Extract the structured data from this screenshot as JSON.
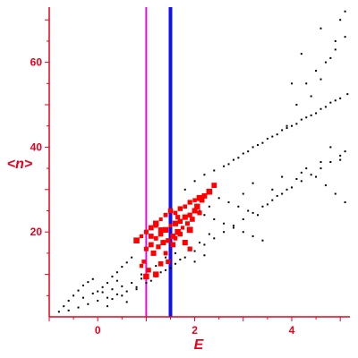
{
  "colors": {
    "axis": "#e8001c",
    "points": "#000000",
    "highlight": "#ff0000",
    "line_a": "#e010e0",
    "line_b": "#1010f0",
    "background": "#ffffff"
  },
  "chart_data": {
    "type": "scatter",
    "title": "",
    "xlabel": "E",
    "ylabel": "<n>",
    "xlim": [
      -1,
      5.2
    ],
    "ylim": [
      0,
      73
    ],
    "xticks": [
      0,
      2,
      4
    ],
    "yticks": [
      20,
      40,
      60
    ],
    "xtick_labels": [
      "0",
      "2",
      "4"
    ],
    "ytick_labels": [
      "20",
      "40",
      "60"
    ],
    "vertical_lines": [
      {
        "x": 1.0,
        "color": "#e010e0"
      },
      {
        "x": 1.5,
        "color": "#1010f0"
      }
    ],
    "grid": false,
    "series": [
      {
        "color": "#000000",
        "marker_size": "small",
        "points": [
          [
            -0.8,
            1.2
          ],
          [
            -0.7,
            2.5
          ],
          [
            -0.6,
            3.8
          ],
          [
            -0.5,
            5.0
          ],
          [
            -0.4,
            6.2
          ],
          [
            -0.3,
            7.4
          ],
          [
            -0.2,
            8.2
          ],
          [
            -0.1,
            8.9
          ],
          [
            0.0,
            6.0
          ],
          [
            0.1,
            7.0
          ],
          [
            0.2,
            8.0
          ],
          [
            0.3,
            9.5
          ],
          [
            0.4,
            10.5
          ],
          [
            0.5,
            11.8
          ],
          [
            0.6,
            12.8
          ],
          [
            0.7,
            14.0
          ],
          [
            -0.6,
            1.5
          ],
          [
            -0.4,
            2.2
          ],
          [
            -0.2,
            3.0
          ],
          [
            0.0,
            3.8
          ],
          [
            0.2,
            4.5
          ],
          [
            0.4,
            5.3
          ],
          [
            0.6,
            6.0
          ],
          [
            0.8,
            7.0
          ],
          [
            -0.3,
            4.5
          ],
          [
            0.1,
            5.8
          ],
          [
            0.3,
            6.5
          ],
          [
            0.5,
            7.2
          ],
          [
            0.7,
            8.0
          ],
          [
            0.9,
            9.0
          ],
          [
            0.2,
            2.5
          ],
          [
            0.6,
            3.5
          ],
          [
            1.0,
            8.0
          ],
          [
            1.2,
            9.5
          ],
          [
            1.4,
            11.0
          ],
          [
            1.6,
            12.5
          ],
          [
            1.8,
            14.0
          ],
          [
            2.0,
            15.5
          ],
          [
            2.2,
            17.0
          ],
          [
            2.4,
            18.5
          ],
          [
            2.6,
            20.0
          ],
          [
            2.8,
            21.5
          ],
          [
            3.0,
            23.0
          ],
          [
            3.2,
            24.5
          ],
          [
            3.4,
            26.0
          ],
          [
            3.6,
            27.5
          ],
          [
            3.8,
            29.0
          ],
          [
            4.0,
            30.5
          ],
          [
            4.2,
            32.0
          ],
          [
            4.4,
            33.5
          ],
          [
            4.6,
            35.0
          ],
          [
            4.8,
            36.5
          ],
          [
            5.0,
            38.0
          ],
          [
            5.1,
            39.0
          ],
          [
            1.8,
            30.0
          ],
          [
            2.0,
            32.0
          ],
          [
            2.2,
            33.5
          ],
          [
            2.4,
            34.5
          ],
          [
            2.6,
            35.5
          ],
          [
            2.8,
            37.0
          ],
          [
            3.0,
            38.5
          ],
          [
            3.2,
            40.0
          ],
          [
            3.4,
            41.0
          ],
          [
            3.6,
            42.5
          ],
          [
            3.8,
            44.0
          ],
          [
            4.0,
            45.0
          ],
          [
            4.2,
            46.5
          ],
          [
            4.4,
            47.5
          ],
          [
            4.6,
            49.0
          ],
          [
            4.8,
            50.5
          ],
          [
            5.0,
            51.5
          ],
          [
            5.15,
            52.5
          ],
          [
            3.9,
            44.5
          ],
          [
            4.1,
            45.5
          ],
          [
            4.3,
            47.0
          ],
          [
            4.5,
            48.0
          ],
          [
            4.7,
            49.5
          ],
          [
            4.9,
            51.0
          ],
          [
            3.3,
            40.5
          ],
          [
            3.5,
            42.0
          ],
          [
            3.7,
            43.0
          ],
          [
            2.7,
            36.0
          ],
          [
            2.9,
            37.5
          ],
          [
            3.1,
            39.0
          ],
          [
            2.2,
            24.0
          ],
          [
            2.4,
            23.0
          ],
          [
            2.6,
            22.0
          ],
          [
            2.8,
            21.0
          ],
          [
            3.0,
            20.0
          ],
          [
            3.2,
            19.0
          ],
          [
            3.4,
            18.0
          ],
          [
            2.5,
            28.0
          ],
          [
            2.7,
            27.0
          ],
          [
            2.9,
            26.0
          ],
          [
            3.1,
            25.0
          ],
          [
            3.3,
            24.0
          ],
          [
            3.5,
            26.5
          ],
          [
            3.7,
            28.5
          ],
          [
            3.9,
            30.0
          ],
          [
            4.1,
            32.5
          ],
          [
            4.3,
            35.0
          ],
          [
            4.5,
            33.0
          ],
          [
            4.7,
            31.0
          ],
          [
            4.9,
            29.0
          ],
          [
            5.1,
            27.0
          ],
          [
            3.9,
            45.0
          ],
          [
            4.1,
            50.0
          ],
          [
            4.3,
            55.0
          ],
          [
            4.5,
            58.0
          ],
          [
            4.7,
            60.0
          ],
          [
            4.9,
            63.0
          ],
          [
            5.1,
            66.0
          ],
          [
            4.4,
            52.0
          ],
          [
            4.6,
            56.0
          ],
          [
            4.8,
            61.0
          ],
          [
            5.0,
            70.0
          ],
          [
            5.1,
            72.0
          ],
          [
            4.6,
            68.0
          ],
          [
            4.9,
            65.0
          ],
          [
            4.2,
            62.0
          ],
          [
            4.0,
            55.0
          ],
          [
            4.8,
            40.0
          ],
          [
            5.0,
            37.0
          ],
          [
            4.6,
            36.5
          ],
          [
            4.2,
            34.0
          ],
          [
            3.8,
            33.0
          ],
          [
            3.2,
            31.5
          ],
          [
            3.6,
            30.0
          ],
          [
            2.3,
            26.0
          ],
          [
            2.1,
            25.0
          ],
          [
            3.0,
            29.0
          ],
          [
            2.0,
            13.0
          ],
          [
            2.2,
            14.5
          ],
          [
            1.4,
            14.0
          ],
          [
            1.6,
            15.0
          ],
          [
            1.2,
            12.0
          ],
          [
            0.9,
            10.0
          ],
          [
            0.4,
            8.5
          ],
          [
            -0.1,
            5.5
          ],
          [
            0.3,
            4.2
          ],
          [
            0.5,
            5.0
          ],
          [
            0.8,
            6.5
          ],
          [
            1.1,
            8.5
          ],
          [
            1.3,
            10.5
          ],
          [
            1.5,
            11.5
          ],
          [
            1.7,
            13.5
          ],
          [
            1.9,
            16.0
          ],
          [
            2.1,
            17.5
          ],
          [
            2.3,
            19.5
          ]
        ]
      },
      {
        "color": "#ff0000",
        "marker_size": "large",
        "points": [
          [
            0.8,
            18.0
          ],
          [
            0.9,
            19.0
          ],
          [
            1.0,
            20.0
          ],
          [
            1.1,
            21.0
          ],
          [
            1.2,
            22.0
          ],
          [
            1.3,
            23.0
          ],
          [
            1.4,
            24.0
          ],
          [
            1.5,
            25.0
          ],
          [
            1.6,
            24.5
          ],
          [
            1.7,
            25.5
          ],
          [
            1.8,
            26.0
          ],
          [
            1.9,
            27.0
          ],
          [
            2.0,
            27.5
          ],
          [
            2.1,
            28.0
          ],
          [
            2.2,
            28.5
          ],
          [
            1.0,
            16.0
          ],
          [
            1.1,
            17.0
          ],
          [
            1.2,
            18.5
          ],
          [
            1.3,
            19.5
          ],
          [
            1.4,
            20.5
          ],
          [
            1.5,
            21.5
          ],
          [
            1.6,
            22.0
          ],
          [
            1.7,
            22.5
          ],
          [
            1.8,
            23.5
          ],
          [
            1.9,
            24.0
          ],
          [
            2.0,
            25.0
          ],
          [
            1.15,
            15.0
          ],
          [
            1.25,
            16.5
          ],
          [
            1.35,
            17.5
          ],
          [
            1.45,
            18.0
          ],
          [
            1.55,
            19.0
          ],
          [
            1.65,
            20.0
          ],
          [
            1.75,
            21.0
          ],
          [
            1.85,
            22.0
          ],
          [
            1.95,
            23.0
          ],
          [
            0.95,
            13.0
          ],
          [
            1.05,
            11.0
          ],
          [
            1.0,
            9.5
          ],
          [
            0.9,
            12.0
          ],
          [
            1.2,
            10.0
          ],
          [
            1.3,
            12.5
          ],
          [
            1.4,
            15.0
          ],
          [
            1.45,
            13.0
          ],
          [
            1.55,
            17.0
          ],
          [
            1.7,
            19.5
          ],
          [
            1.9,
            20.5
          ],
          [
            2.05,
            26.0
          ],
          [
            2.15,
            27.5
          ],
          [
            2.3,
            29.5
          ],
          [
            2.4,
            31.0
          ],
          [
            1.6,
            18.5
          ],
          [
            1.8,
            17.5
          ],
          [
            1.9,
            16.0
          ],
          [
            1.3,
            20.5
          ],
          [
            1.1,
            19.0
          ],
          [
            1.2,
            21.5
          ],
          [
            1.65,
            23.5
          ],
          [
            2.1,
            24.5
          ]
        ]
      }
    ]
  }
}
